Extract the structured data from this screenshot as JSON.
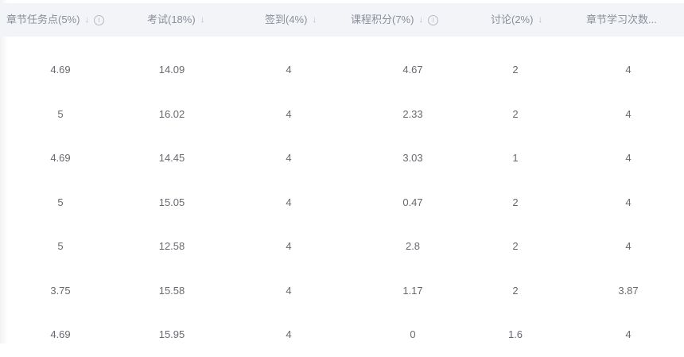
{
  "columns": [
    {
      "label": "章节任务点(5%)",
      "sort_icon": "arrow-down-icon",
      "info": true
    },
    {
      "label": "考试(18%)",
      "sort_icon": "arrow-down-icon",
      "info": false
    },
    {
      "label": "签到(4%)",
      "sort_icon": "arrow-down-icon",
      "info": false
    },
    {
      "label": "课程积分(7%)",
      "sort_icon": "arrow-down-icon",
      "info": true
    },
    {
      "label": "讨论(2%)",
      "sort_icon": "arrow-down-icon",
      "info": false
    },
    {
      "label": "章节学习次数...",
      "sort_icon": null,
      "info": false
    }
  ],
  "rows": [
    [
      "4.69",
      "14.09",
      "4",
      "4.67",
      "2",
      "4"
    ],
    [
      "5",
      "16.02",
      "4",
      "2.33",
      "2",
      "4"
    ],
    [
      "4.69",
      "14.45",
      "4",
      "3.03",
      "1",
      "4"
    ],
    [
      "5",
      "15.05",
      "4",
      "0.47",
      "2",
      "4"
    ],
    [
      "5",
      "12.58",
      "4",
      "2.8",
      "2",
      "4"
    ],
    [
      "3.75",
      "15.58",
      "4",
      "1.17",
      "2",
      "3.87"
    ],
    [
      "4.69",
      "15.95",
      "4",
      "0",
      "1.6",
      "4"
    ]
  ],
  "icons": {
    "sort": "↓",
    "info": "i"
  }
}
